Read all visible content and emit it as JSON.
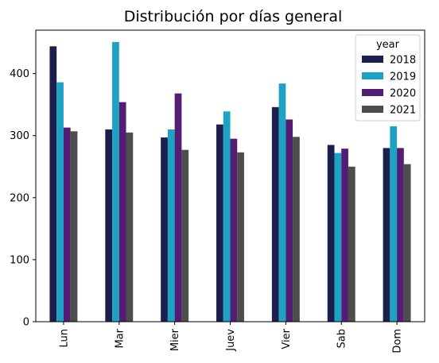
{
  "chart_data": {
    "type": "bar",
    "title": "Distribución por días general",
    "xlabel": "",
    "ylabel": "",
    "categories": [
      "Lun",
      "Mar",
      "Mier",
      "Juev",
      "Vier",
      "Sab",
      "Dom"
    ],
    "ylim": [
      0,
      470
    ],
    "yticks": [
      0,
      100,
      200,
      300,
      400
    ],
    "grid": false,
    "legend": {
      "title": "year",
      "placement": "top-right"
    },
    "series": [
      {
        "name": "2018",
        "color": "#1a1f4e",
        "values": [
          444,
          310,
          297,
          318,
          346,
          285,
          280
        ]
      },
      {
        "name": "2019",
        "color": "#1ea2c4",
        "values": [
          386,
          451,
          310,
          339,
          384,
          272,
          315
        ]
      },
      {
        "name": "2020",
        "color": "#521d73",
        "values": [
          313,
          354,
          368,
          295,
          326,
          279,
          280
        ]
      },
      {
        "name": "2021",
        "color": "#4d4d4d",
        "values": [
          307,
          305,
          277,
          273,
          298,
          250,
          254
        ]
      }
    ]
  }
}
